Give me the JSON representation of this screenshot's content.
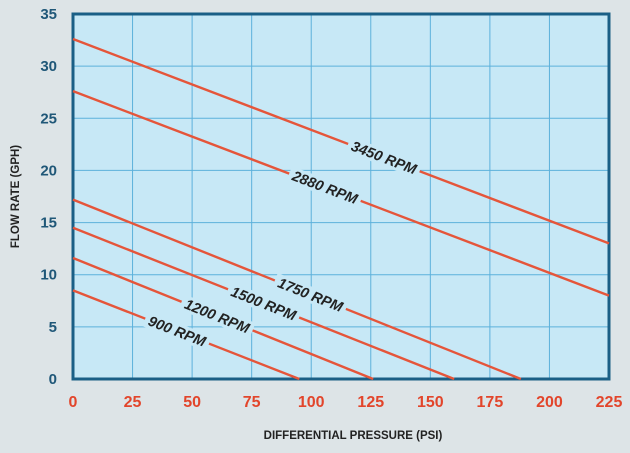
{
  "colors": {
    "background": "#dde4e7",
    "plot_fill": "#c7e8f6",
    "frame": "#1a5f86",
    "grid": "#5cb1db",
    "series": "#e5553a",
    "y_ticks": "#1f5778",
    "x_ticks": "#e2452b"
  },
  "chart_data": {
    "type": "line",
    "title": "",
    "xlabel": "DIFFERENTIAL PRESSURE  (PSI)",
    "ylabel": "FLOW RATE (GPH)",
    "xlim": [
      0,
      225
    ],
    "ylim": [
      0,
      35
    ],
    "x_ticks": [
      "0",
      "25",
      "50",
      "75",
      "100",
      "125",
      "150",
      "175",
      "200",
      "225"
    ],
    "y_ticks": [
      "0",
      "5",
      "10",
      "15",
      "20",
      "25",
      "30",
      "35"
    ],
    "grid": true,
    "series": [
      {
        "name": "3450 RPM",
        "x": [
          0,
          225
        ],
        "y": [
          32.6,
          13.0
        ]
      },
      {
        "name": "2880 RPM",
        "x": [
          0,
          225
        ],
        "y": [
          27.6,
          8.0
        ]
      },
      {
        "name": "1750 RPM",
        "x": [
          0,
          188
        ],
        "y": [
          17.2,
          0
        ]
      },
      {
        "name": "1500 RPM",
        "x": [
          0,
          160
        ],
        "y": [
          14.5,
          0
        ]
      },
      {
        "name": "1200 RPM",
        "x": [
          0,
          126
        ],
        "y": [
          11.6,
          0
        ]
      },
      {
        "name": "900 RPM",
        "x": [
          0,
          95
        ],
        "y": [
          8.5,
          0
        ]
      }
    ]
  }
}
